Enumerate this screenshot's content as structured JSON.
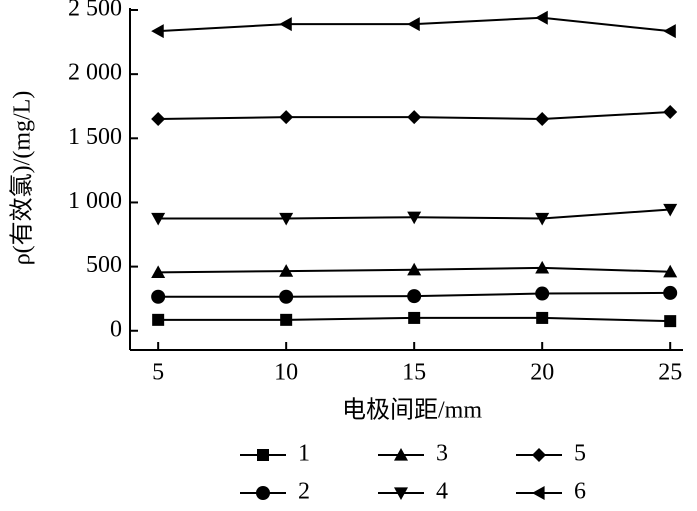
{
  "chart_data": {
    "type": "line",
    "x_label": "电极间距/mm",
    "y_label": "ρ(有效氯)/(mg/L)",
    "x": [
      5,
      10,
      15,
      20,
      25
    ],
    "xlim": [
      3.9,
      25.5
    ],
    "xticks": [
      5,
      10,
      15,
      20,
      25
    ],
    "ylim": [
      -150,
      2500
    ],
    "yticks": [
      0,
      500,
      {
        "value": 1000,
        "label": "1 000"
      },
      {
        "value": 1500,
        "label": "1 500"
      },
      {
        "value": 2000,
        "label": "2 000"
      },
      {
        "value": 2500,
        "label": "2 500"
      }
    ],
    "series": [
      {
        "name": "1",
        "color": "#000000",
        "marker": "square",
        "values": [
          85,
          85,
          100,
          100,
          75
        ]
      },
      {
        "name": "2",
        "color": "#000000",
        "marker": "circle",
        "values": [
          265,
          265,
          270,
          290,
          295
        ]
      },
      {
        "name": "3",
        "color": "#000000",
        "marker": "triangle-up",
        "values": [
          455,
          465,
          475,
          490,
          460
        ]
      },
      {
        "name": "4",
        "color": "#000000",
        "marker": "triangle-down",
        "values": [
          875,
          875,
          885,
          875,
          945
        ]
      },
      {
        "name": "5",
        "color": "#000000",
        "marker": "diamond",
        "values": [
          1650,
          1665,
          1665,
          1650,
          1705
        ]
      },
      {
        "name": "6",
        "color": "#000000",
        "marker": "triangle-left",
        "values": [
          2335,
          2390,
          2390,
          2440,
          2335
        ]
      }
    ]
  }
}
